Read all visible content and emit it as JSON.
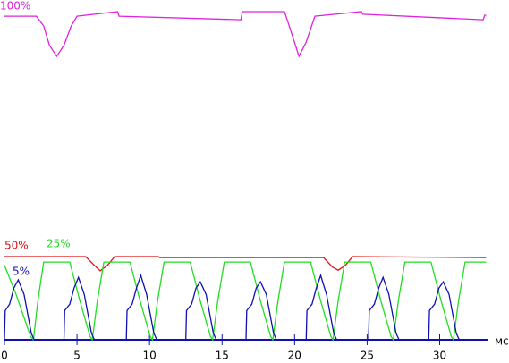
{
  "chart_data": {
    "type": "line",
    "x_label": "мс",
    "xlim": [
      0,
      33.3
    ],
    "xticks": [
      0,
      5,
      10,
      15,
      20,
      25,
      30
    ],
    "ylim": [
      0,
      105
    ],
    "series": [
      {
        "name": "100%",
        "color": "#e020e0",
        "x": [
          0,
          2.2,
          2.7,
          3.1,
          3.6,
          4.1,
          4.6,
          5.0,
          7.8,
          7.9,
          16.3,
          16.4,
          19.3,
          19.7,
          20.3,
          20.8,
          21.4,
          24.6,
          24.7,
          33.0,
          33.1,
          33.2
        ],
        "values": [
          100,
          100,
          97,
          91,
          87.6,
          91,
          97,
          100,
          101.4,
          100,
          98.9,
          101.4,
          101.4,
          96,
          87.6,
          92,
          100,
          101.4,
          100.6,
          98.9,
          100.3,
          100.3
        ]
      },
      {
        "name": "50%",
        "color": "#e01010",
        "x": [
          0,
          5.6,
          6.2,
          6.6,
          7.1,
          7.6,
          10.6,
          10.7,
          22.0,
          22.6,
          23.0,
          23.5,
          24.0,
          33.2
        ],
        "values": [
          25.7,
          25.7,
          23,
          21.3,
          23,
          25.7,
          25.7,
          25.4,
          25.4,
          22.5,
          21.5,
          23,
          25.7,
          25.4
        ]
      },
      {
        "name": "25%",
        "color": "#22dd22",
        "x": [
          0,
          0.8,
          1.8,
          2.0,
          2.3,
          2.7,
          4.5,
          5.2,
          5.9,
          6.05,
          6.4,
          6.85,
          8.65,
          9.35,
          10.05,
          10.2,
          10.55,
          11.0,
          12.8,
          13.5,
          14.2,
          14.35,
          14.7,
          15.15,
          16.95,
          17.65,
          18.35,
          18.5,
          18.85,
          19.3,
          21.1,
          21.8,
          22.5,
          22.65,
          23.0,
          23.45,
          25.25,
          25.95,
          26.65,
          26.8,
          27.15,
          27.6,
          29.4,
          30.1,
          30.8,
          30.95,
          31.3,
          31.75,
          33.2
        ],
        "values": [
          23,
          14,
          1,
          0,
          12,
          24,
          24,
          12,
          1,
          0,
          12,
          24,
          24,
          12,
          1,
          0,
          12,
          24,
          24,
          12,
          1,
          0,
          12,
          24,
          24,
          12,
          1,
          0,
          12,
          24,
          24,
          12,
          1,
          0,
          12,
          24,
          24,
          12,
          1,
          0,
          12,
          24,
          24,
          12,
          1,
          0,
          12,
          24,
          24
        ]
      },
      {
        "name": "5%",
        "color": "#1010b0",
        "x": [
          0,
          0.05,
          0.35,
          0.65,
          0.95,
          1.35,
          1.85,
          2.05,
          4.1,
          4.15,
          4.5,
          4.8,
          5.1,
          5.5,
          6.0,
          6.2,
          8.4,
          8.45,
          8.8,
          9.1,
          9.4,
          9.8,
          10.3,
          10.5,
          12.5,
          12.55,
          12.9,
          13.2,
          13.5,
          13.9,
          14.4,
          14.6,
          16.65,
          16.7,
          17.05,
          17.35,
          17.65,
          18.05,
          18.55,
          18.75,
          20.8,
          20.85,
          21.2,
          21.5,
          21.8,
          22.2,
          22.7,
          22.9,
          25.1,
          25.15,
          25.5,
          25.8,
          26.1,
          26.5,
          27.0,
          27.2,
          29.25,
          29.3,
          29.65,
          29.95,
          30.25,
          30.65,
          31.15,
          31.35,
          33.2
        ],
        "values": [
          0,
          9,
          11,
          16,
          18.5,
          14,
          2,
          0,
          0,
          9,
          11,
          16,
          19.3,
          14,
          2,
          0,
          0,
          9,
          11,
          16,
          19.9,
          14,
          2,
          0,
          0,
          9,
          11,
          16,
          17.9,
          14,
          2,
          0,
          0,
          9,
          11,
          16,
          17.9,
          14,
          2,
          0,
          0,
          9,
          11,
          16,
          19.9,
          14,
          2,
          0,
          0,
          9,
          11,
          16,
          19.3,
          14,
          2,
          0,
          0,
          9,
          11,
          16,
          17.9,
          14,
          2,
          0,
          0
        ]
      }
    ]
  }
}
